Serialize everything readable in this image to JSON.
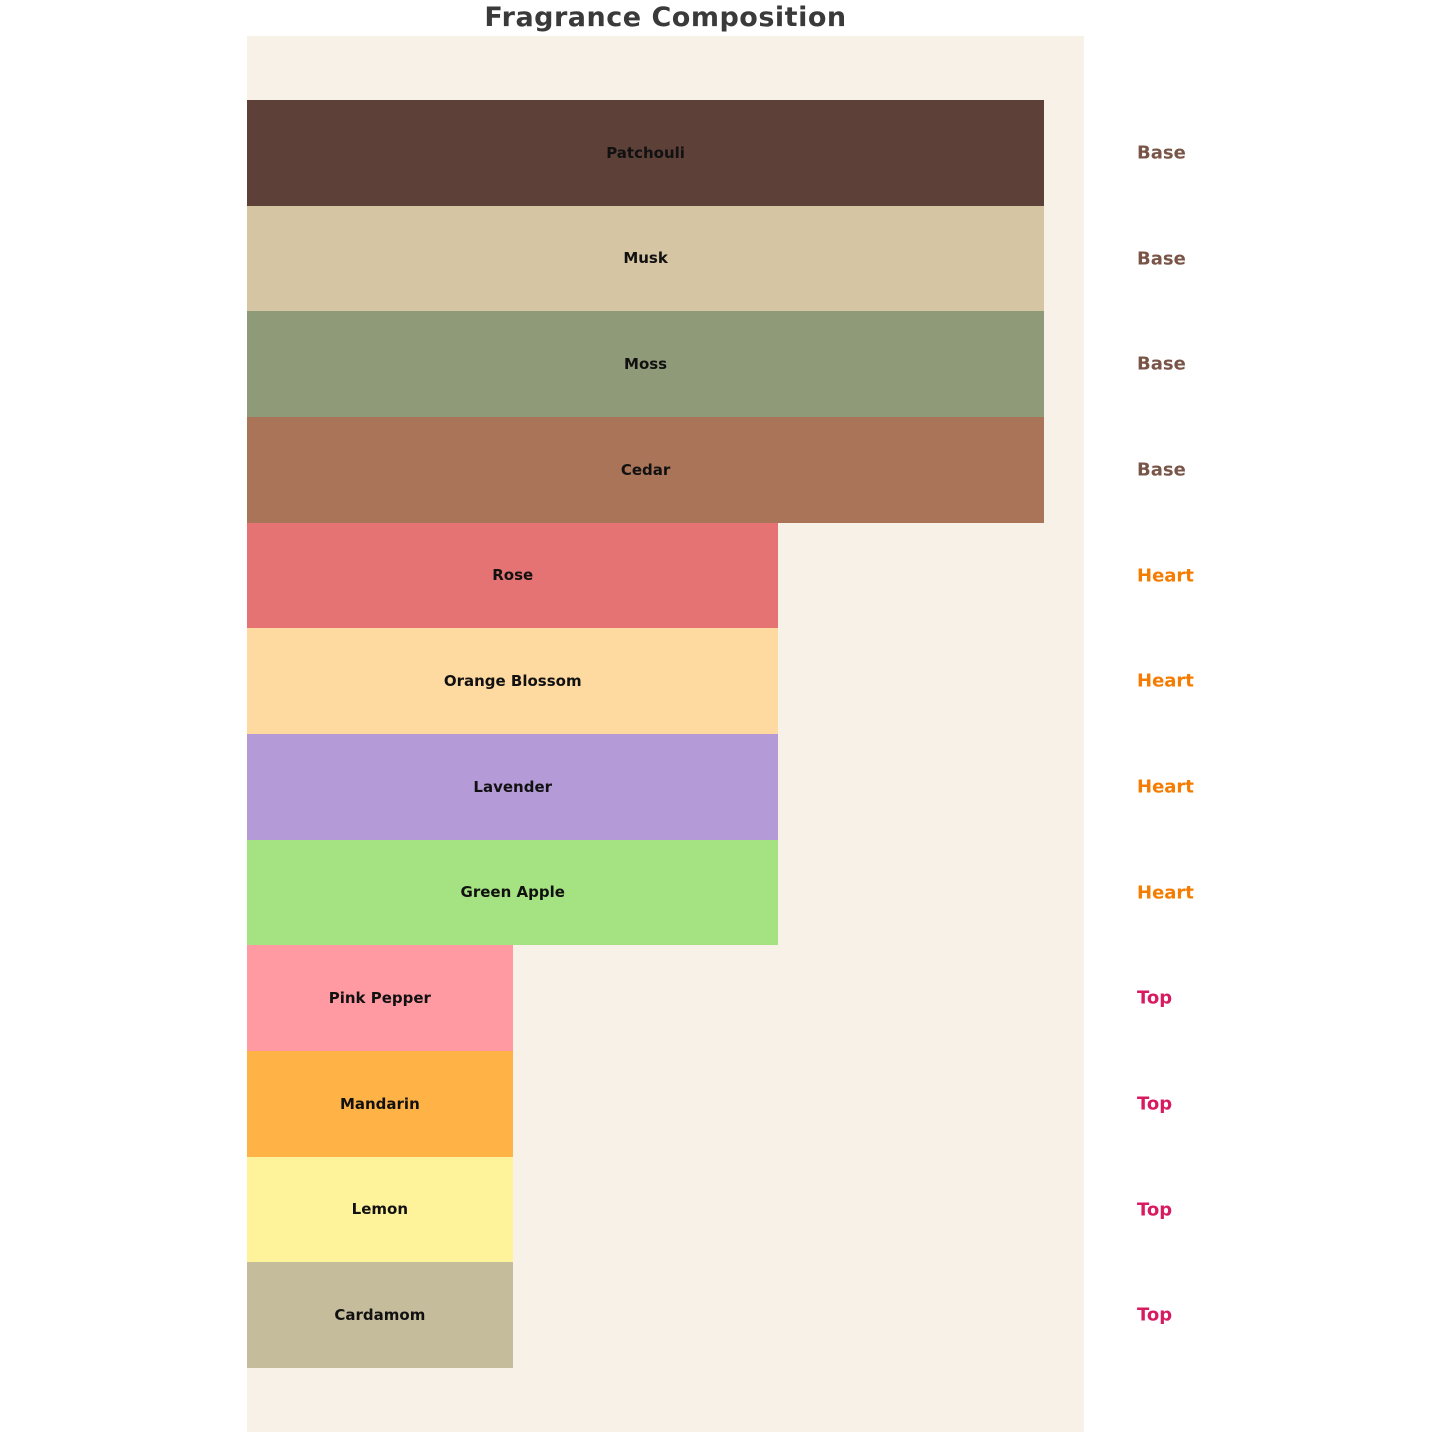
{
  "title": "Fragrance Composition",
  "colors": {
    "page_bg": "#FFFFFF",
    "plot_bg": "#F7F1E8",
    "title_color": "#3A3A3A",
    "bar_label_color": "#111111"
  },
  "chart_data": {
    "type": "bar",
    "orientation": "horizontal",
    "title": "Fragrance Composition",
    "categories": [
      "Patchouli",
      "Musk",
      "Moss",
      "Cedar",
      "Rose",
      "Orange Blossom",
      "Lavender",
      "Green Apple",
      "Pink Pepper",
      "Mandarin",
      "Lemon",
      "Cardamom"
    ],
    "bars": [
      {
        "label": "Patchouli",
        "group": "Base",
        "value": 3,
        "color": "#5D4037"
      },
      {
        "label": "Musk",
        "group": "Base",
        "value": 3,
        "color": "#D5C5A2"
      },
      {
        "label": "Moss",
        "group": "Base",
        "value": 3,
        "color": "#8F9B78"
      },
      {
        "label": "Cedar",
        "group": "Base",
        "value": 3,
        "color": "#A97458"
      },
      {
        "label": "Rose",
        "group": "Heart",
        "value": 2,
        "color": "#E57373"
      },
      {
        "label": "Orange Blossom",
        "group": "Heart",
        "value": 2,
        "color": "#FED9A0"
      },
      {
        "label": "Lavender",
        "group": "Heart",
        "value": 2,
        "color": "#B49BD8"
      },
      {
        "label": "Green Apple",
        "group": "Heart",
        "value": 2,
        "color": "#A5E282"
      },
      {
        "label": "Pink Pepper",
        "group": "Top",
        "value": 1,
        "color": "#FF9AA2"
      },
      {
        "label": "Mandarin",
        "group": "Top",
        "value": 1,
        "color": "#FFB246"
      },
      {
        "label": "Lemon",
        "group": "Top",
        "value": 1,
        "color": "#FEF29B"
      },
      {
        "label": "Cardamom",
        "group": "Top",
        "value": 1,
        "color": "#C5BC9B"
      }
    ],
    "group_label_colors": {
      "Base": "#795548",
      "Heart": "#F57C00",
      "Top": "#D81B60"
    },
    "xlim": [
      0,
      3.15
    ],
    "grid": false,
    "legend": "none",
    "axis_ticks": "none",
    "value_note": "No numeric axis shown; bar lengths read as relative widths Base:Heart:Top = 3:2:1 (Base ~95%, Heart ~63%, Top ~32% of plot width)"
  }
}
